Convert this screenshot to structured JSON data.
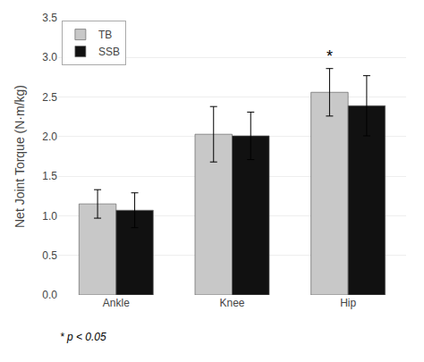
{
  "chart_data": {
    "type": "bar",
    "ylabel": "Net Joint Torque (N·m/kg)",
    "categories": [
      "Ankle",
      "Knee",
      "Hip"
    ],
    "series": [
      {
        "name": "TB",
        "color": "#c8c8c8",
        "values": [
          1.15,
          2.03,
          2.56
        ],
        "errors": [
          0.18,
          0.35,
          0.3
        ]
      },
      {
        "name": "SSB",
        "color": "#111111",
        "values": [
          1.07,
          2.01,
          2.39
        ],
        "errors": [
          0.22,
          0.3,
          0.38
        ]
      }
    ],
    "ylim": [
      0,
      3.5
    ],
    "yticks": [
      {
        "value": 0,
        "label": "0.0"
      },
      0.5,
      {
        "value": 1,
        "label": "1.0"
      },
      1.5,
      {
        "value": 2,
        "label": "2.0"
      },
      2.5,
      {
        "value": 3,
        "label": "3.0"
      },
      3.5
    ],
    "grid": true,
    "legend": "upper left",
    "annotations": [
      {
        "text": "*",
        "category": "Hip",
        "series": "TB"
      },
      {
        "text": "* p < 0.05"
      }
    ]
  }
}
